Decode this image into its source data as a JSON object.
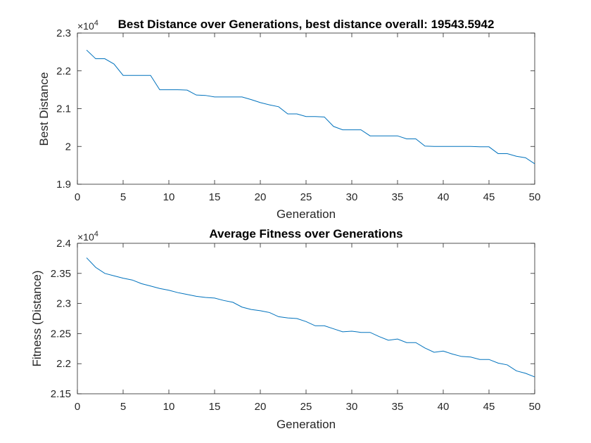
{
  "chart_data": [
    {
      "type": "line",
      "title": "Best Distance over Generations, best distance overall: 19543.5942",
      "xlabel": "Generation",
      "ylabel": "Best Distance",
      "exponent_base": "×10",
      "exponent_power": "4",
      "xlim": [
        0,
        50
      ],
      "ylim": [
        1.9,
        2.3
      ],
      "xticks": [
        0,
        5,
        10,
        15,
        20,
        25,
        30,
        35,
        40,
        45,
        50
      ],
      "yticks": [
        1.9,
        2.0,
        2.1,
        2.2,
        2.3
      ],
      "xtick_labels": [
        "0",
        "5",
        "10",
        "15",
        "20",
        "25",
        "30",
        "35",
        "40",
        "45",
        "50"
      ],
      "ytick_labels": [
        "1.9",
        "2",
        "2.1",
        "2.2",
        "2.3"
      ],
      "color": "#0072BD",
      "x": [
        1,
        2,
        3,
        4,
        5,
        6,
        7,
        8,
        9,
        10,
        11,
        12,
        13,
        14,
        15,
        16,
        17,
        18,
        19,
        20,
        21,
        22,
        23,
        24,
        25,
        26,
        27,
        28,
        29,
        30,
        31,
        32,
        33,
        34,
        35,
        36,
        37,
        38,
        39,
        40,
        41,
        42,
        43,
        44,
        45,
        46,
        47,
        48,
        49,
        50
      ],
      "y": [
        2.255,
        2.232,
        2.232,
        2.218,
        2.188,
        2.188,
        2.188,
        2.188,
        2.15,
        2.15,
        2.15,
        2.149,
        2.136,
        2.135,
        2.131,
        2.131,
        2.131,
        2.131,
        2.124,
        2.116,
        2.11,
        2.105,
        2.086,
        2.086,
        2.079,
        2.079,
        2.078,
        2.053,
        2.044,
        2.044,
        2.044,
        2.028,
        2.028,
        2.028,
        2.028,
        2.02,
        2.02,
        2.001,
        2.0,
        2.0,
        2.0,
        2.0,
        2.0,
        1.999,
        1.999,
        1.981,
        1.981,
        1.974,
        1.97,
        1.954
      ]
    },
    {
      "type": "line",
      "title": "Average Fitness over Generations",
      "xlabel": "Generation",
      "ylabel": "Fitness (Distance)",
      "exponent_base": "×10",
      "exponent_power": "4",
      "xlim": [
        0,
        50
      ],
      "ylim": [
        2.15,
        2.4
      ],
      "xticks": [
        0,
        5,
        10,
        15,
        20,
        25,
        30,
        35,
        40,
        45,
        50
      ],
      "yticks": [
        2.15,
        2.2,
        2.25,
        2.3,
        2.35,
        2.4
      ],
      "xtick_labels": [
        "0",
        "5",
        "10",
        "15",
        "20",
        "25",
        "30",
        "35",
        "40",
        "45",
        "50"
      ],
      "ytick_labels": [
        "2.15",
        "2.2",
        "2.25",
        "2.3",
        "2.35",
        "2.4"
      ],
      "color": "#0072BD",
      "x": [
        1,
        2,
        3,
        4,
        5,
        6,
        7,
        8,
        9,
        10,
        11,
        12,
        13,
        14,
        15,
        16,
        17,
        18,
        19,
        20,
        21,
        22,
        23,
        24,
        25,
        26,
        27,
        28,
        29,
        30,
        31,
        32,
        33,
        34,
        35,
        36,
        37,
        38,
        39,
        40,
        41,
        42,
        43,
        44,
        45,
        46,
        47,
        48,
        49,
        50
      ],
      "y": [
        2.376,
        2.36,
        2.35,
        2.346,
        2.342,
        2.339,
        2.333,
        2.329,
        2.325,
        2.322,
        2.318,
        2.315,
        2.312,
        2.31,
        2.309,
        2.305,
        2.302,
        2.294,
        2.29,
        2.288,
        2.285,
        2.278,
        2.276,
        2.275,
        2.27,
        2.263,
        2.263,
        2.258,
        2.253,
        2.254,
        2.252,
        2.252,
        2.245,
        2.239,
        2.241,
        2.235,
        2.235,
        2.226,
        2.219,
        2.221,
        2.216,
        2.212,
        2.211,
        2.207,
        2.207,
        2.201,
        2.198,
        2.188,
        2.184,
        2.178
      ]
    }
  ]
}
